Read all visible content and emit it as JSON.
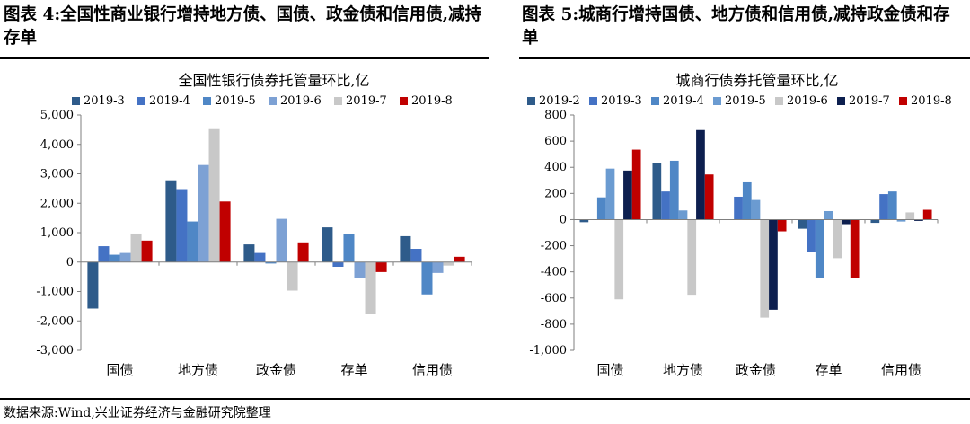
{
  "figures": {
    "left": {
      "heading": "图表 4:全国性商业银行增持地方债、国债、政金债和信用债,减持存单"
    },
    "right": {
      "heading": "图表 5:城商行增持国债、地方债和信用债,减持政金债和存单"
    }
  },
  "source": "数据来源:Wind,兴业证券经济与金融研究院整理",
  "chart_data": [
    {
      "type": "bar",
      "title": "全国性银行债券托管量环比,亿",
      "categories": [
        "国债",
        "地方债",
        "政金债",
        "存单",
        "信用债"
      ],
      "ylim": [
        -3000,
        5000
      ],
      "yticks": [
        -3000,
        -2000,
        -1000,
        0,
        1000,
        2000,
        3000,
        4000,
        5000
      ],
      "ytick_labels": [
        "-3,000",
        "-2,000",
        "-1,000",
        "0",
        "1,000",
        "2,000",
        "3,000",
        "4,000",
        "5,000"
      ],
      "legend_position": "top",
      "series": [
        {
          "name": "2019-3",
          "color": "#2e5b8a",
          "values": [
            -1580,
            2780,
            600,
            1180,
            880
          ]
        },
        {
          "name": "2019-4",
          "color": "#4472c4",
          "values": [
            540,
            2480,
            310,
            -160,
            450
          ]
        },
        {
          "name": "2019-5",
          "color": "#4f87c6",
          "values": [
            250,
            1380,
            -50,
            940,
            -1100
          ]
        },
        {
          "name": "2019-6",
          "color": "#7da1d4",
          "values": [
            310,
            3300,
            1470,
            -540,
            -370
          ]
        },
        {
          "name": "2019-7",
          "color": "#c8c8c8",
          "values": [
            970,
            4520,
            -970,
            -1760,
            -120
          ]
        },
        {
          "name": "2019-8",
          "color": "#c00000",
          "values": [
            730,
            2060,
            670,
            -340,
            180
          ]
        }
      ]
    },
    {
      "type": "bar",
      "title": "城商行债券托管量环比,亿",
      "categories": [
        "国债",
        "地方债",
        "政金债",
        "存单",
        "信用债"
      ],
      "ylim": [
        -1000,
        800
      ],
      "yticks": [
        -1000,
        -800,
        -600,
        -400,
        -200,
        0,
        200,
        400,
        600,
        800
      ],
      "ytick_labels": [
        "-1,000",
        "-800",
        "-600",
        "-400",
        "-200",
        "0",
        "200",
        "400",
        "600",
        "800"
      ],
      "legend_position": "top",
      "series": [
        {
          "name": "2019-2",
          "color": "#2e5b8a",
          "values": [
            -20,
            430,
            0,
            -70,
            -25
          ]
        },
        {
          "name": "2019-3",
          "color": "#4472c4",
          "values": [
            0,
            215,
            175,
            -245,
            195
          ]
        },
        {
          "name": "2019-4",
          "color": "#4f87c6",
          "values": [
            170,
            450,
            285,
            -445,
            215
          ]
        },
        {
          "name": "2019-5",
          "color": "#6b9bd1",
          "values": [
            390,
            70,
            150,
            65,
            -15
          ]
        },
        {
          "name": "2019-6",
          "color": "#c8c8c8",
          "values": [
            -610,
            -575,
            -750,
            -295,
            55
          ]
        },
        {
          "name": "2019-7",
          "color": "#0d1f4f",
          "values": [
            375,
            685,
            -690,
            -35,
            -10
          ]
        },
        {
          "name": "2019-8",
          "color": "#c00000",
          "values": [
            535,
            345,
            -90,
            -445,
            75
          ]
        }
      ]
    }
  ]
}
